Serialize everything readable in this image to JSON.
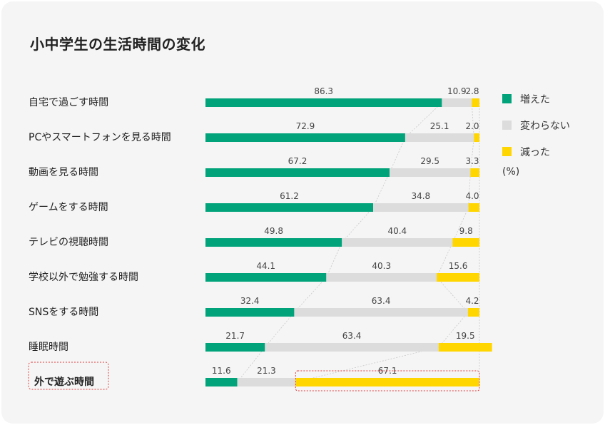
{
  "title": "小中学生の生活時間の変化",
  "legend": {
    "items": [
      {
        "label": "増えた",
        "color": "#00a37a"
      },
      {
        "label": "変わらない",
        "color": "#dcdcdc"
      },
      {
        "label": "減った",
        "color": "#ffd600"
      }
    ],
    "unit": "(%)"
  },
  "chart_data": {
    "type": "bar",
    "stacked": true,
    "orientation": "horizontal",
    "categories": [
      "自宅で過ごす時間",
      "PCやスマートフォンを見る時間",
      "動画を見る時間",
      "ゲームをする時間",
      "テレビの視聴時間",
      "学校以外で勉強する時間",
      "SNSをする時間",
      "睡眠時間",
      "外で遊ぶ時間"
    ],
    "series": [
      {
        "name": "増えた",
        "color": "#00a37a",
        "values": [
          86.3,
          72.9,
          67.2,
          61.2,
          49.8,
          44.1,
          32.4,
          21.7,
          11.6
        ]
      },
      {
        "name": "変わらない",
        "color": "#dcdcdc",
        "values": [
          10.9,
          25.1,
          29.5,
          34.8,
          40.4,
          40.3,
          63.4,
          63.4,
          21.3
        ]
      },
      {
        "name": "減った",
        "color": "#ffd600",
        "values": [
          2.8,
          2.0,
          3.3,
          4.0,
          9.8,
          15.6,
          4.2,
          19.5,
          67.1
        ]
      }
    ],
    "highlight_category": "外で遊ぶ時間",
    "highlight_series": "減った",
    "xlim": [
      0,
      100
    ],
    "unit": "%"
  }
}
